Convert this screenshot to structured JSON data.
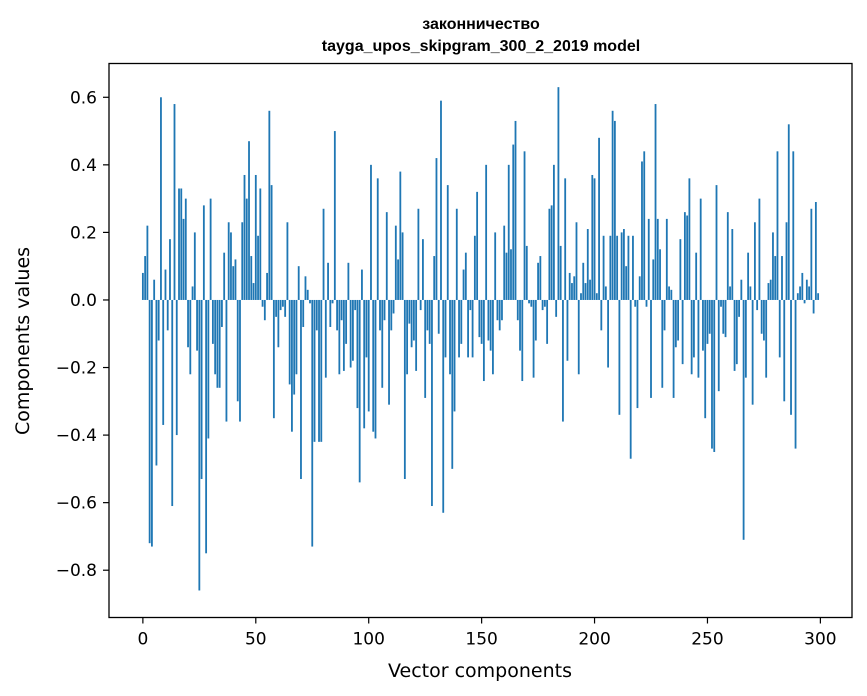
{
  "chart_data": {
    "type": "bar",
    "title_line1": "законничество",
    "title_line2": "tayga_upos_skipgram_300_2_2019 model",
    "xlabel": "Vector components",
    "ylabel": "Components values",
    "xlim": [
      -15,
      314
    ],
    "ylim": [
      -0.94,
      0.7
    ],
    "xticks": [
      0,
      50,
      100,
      150,
      200,
      250,
      300
    ],
    "xtick_labels": [
      "0",
      "50",
      "100",
      "150",
      "200",
      "250",
      "300"
    ],
    "yticks": [
      -0.8,
      -0.6,
      -0.4,
      -0.2,
      0.0,
      0.2,
      0.4,
      0.6
    ],
    "ytick_labels": [
      "−0.8",
      "−0.6",
      "−0.4",
      "−0.2",
      "0.0",
      "0.2",
      "0.4",
      "0.6"
    ],
    "bar_color": "#1f77b4",
    "values": [
      0.08,
      0.13,
      0.22,
      -0.72,
      -0.73,
      0.06,
      -0.49,
      -0.12,
      0.6,
      -0.37,
      0.09,
      -0.09,
      0.18,
      -0.61,
      0.58,
      -0.4,
      0.33,
      0.33,
      0.24,
      0.3,
      -0.14,
      -0.22,
      0.04,
      0.2,
      -0.15,
      -0.86,
      -0.53,
      0.28,
      -0.75,
      -0.41,
      0.3,
      -0.13,
      -0.22,
      -0.26,
      -0.26,
      -0.08,
      0.14,
      -0.36,
      0.23,
      0.2,
      0.1,
      0.12,
      -0.3,
      -0.36,
      0.23,
      0.37,
      0.3,
      0.47,
      0.13,
      0.05,
      0.37,
      0.19,
      0.33,
      -0.02,
      -0.06,
      0.08,
      0.56,
      0.34,
      -0.35,
      -0.05,
      -0.14,
      -0.03,
      -0.02,
      -0.05,
      0.23,
      -0.25,
      -0.39,
      -0.28,
      -0.22,
      0.1,
      -0.53,
      -0.08,
      0.07,
      0.03,
      -0.01,
      -0.73,
      -0.42,
      -0.09,
      -0.42,
      -0.42,
      0.27,
      -0.23,
      0.11,
      -0.08,
      -0.01,
      0.5,
      -0.09,
      -0.22,
      -0.06,
      -0.21,
      -0.13,
      0.11,
      -0.2,
      -0.18,
      -0.03,
      -0.32,
      -0.54,
      0.09,
      -0.38,
      -0.17,
      -0.33,
      0.4,
      -0.39,
      -0.41,
      0.36,
      -0.09,
      -0.26,
      -0.06,
      0.26,
      -0.31,
      -0.09,
      -0.04,
      0.22,
      0.12,
      0.38,
      0.2,
      -0.53,
      -0.22,
      -0.07,
      -0.14,
      -0.12,
      -0.21,
      0.27,
      -0.03,
      0.18,
      -0.29,
      -0.09,
      -0.13,
      -0.61,
      0.13,
      0.42,
      -0.1,
      0.59,
      -0.63,
      -0.17,
      0.34,
      -0.22,
      -0.5,
      -0.33,
      0.27,
      -0.17,
      -0.13,
      0.09,
      0.14,
      -0.17,
      -0.03,
      -0.17,
      0.19,
      0.32,
      -0.11,
      -0.13,
      -0.24,
      0.4,
      -0.12,
      -0.15,
      -0.22,
      0.2,
      -0.06,
      -0.09,
      -0.06,
      0.22,
      0.14,
      0.4,
      0.15,
      0.46,
      0.53,
      -0.06,
      -0.15,
      -0.24,
      0.44,
      0.16,
      -0.01,
      -0.02,
      -0.23,
      -0.12,
      0.11,
      0.13,
      -0.03,
      -0.02,
      -0.13,
      0.27,
      0.28,
      0.4,
      -0.05,
      0.63,
      0.16,
      -0.36,
      0.36,
      -0.18,
      0.08,
      0.05,
      0.07,
      0.23,
      -0.22,
      0.02,
      0.11,
      0.05,
      0.21,
      0.06,
      0.37,
      0.36,
      0.02,
      0.48,
      -0.09,
      0.19,
      0.04,
      -0.2,
      0.19,
      0.56,
      0.53,
      0.19,
      -0.34,
      0.2,
      0.21,
      0.1,
      0.19,
      -0.47,
      0.19,
      -0.02,
      -0.32,
      0.07,
      0.41,
      0.44,
      -0.02,
      0.24,
      -0.29,
      0.12,
      0.58,
      0.24,
      0.15,
      -0.26,
      -0.09,
      0.24,
      0.04,
      0.03,
      -0.29,
      -0.14,
      -0.12,
      0.18,
      -0.19,
      0.26,
      0.25,
      0.36,
      -0.22,
      -0.17,
      0.14,
      -0.23,
      0.3,
      -0.15,
      -0.35,
      -0.13,
      -0.1,
      -0.44,
      -0.45,
      0.34,
      -0.27,
      -0.02,
      -0.1,
      -0.11,
      0.26,
      0.04,
      0.21,
      -0.21,
      -0.19,
      -0.05,
      0.06,
      -0.71,
      -0.23,
      0.14,
      0.04,
      -0.31,
      0.23,
      -0.03,
      0.3,
      -0.1,
      -0.12,
      -0.23,
      0.05,
      0.06,
      0.2,
      0.13,
      0.44,
      -0.17,
      0.13,
      -0.3,
      0.23,
      0.52,
      -0.34,
      0.44,
      -0.44,
      0.02,
      0.04,
      0.08,
      -0.01,
      0.06,
      0.04,
      0.27,
      -0.04,
      0.29,
      0.02
    ]
  }
}
